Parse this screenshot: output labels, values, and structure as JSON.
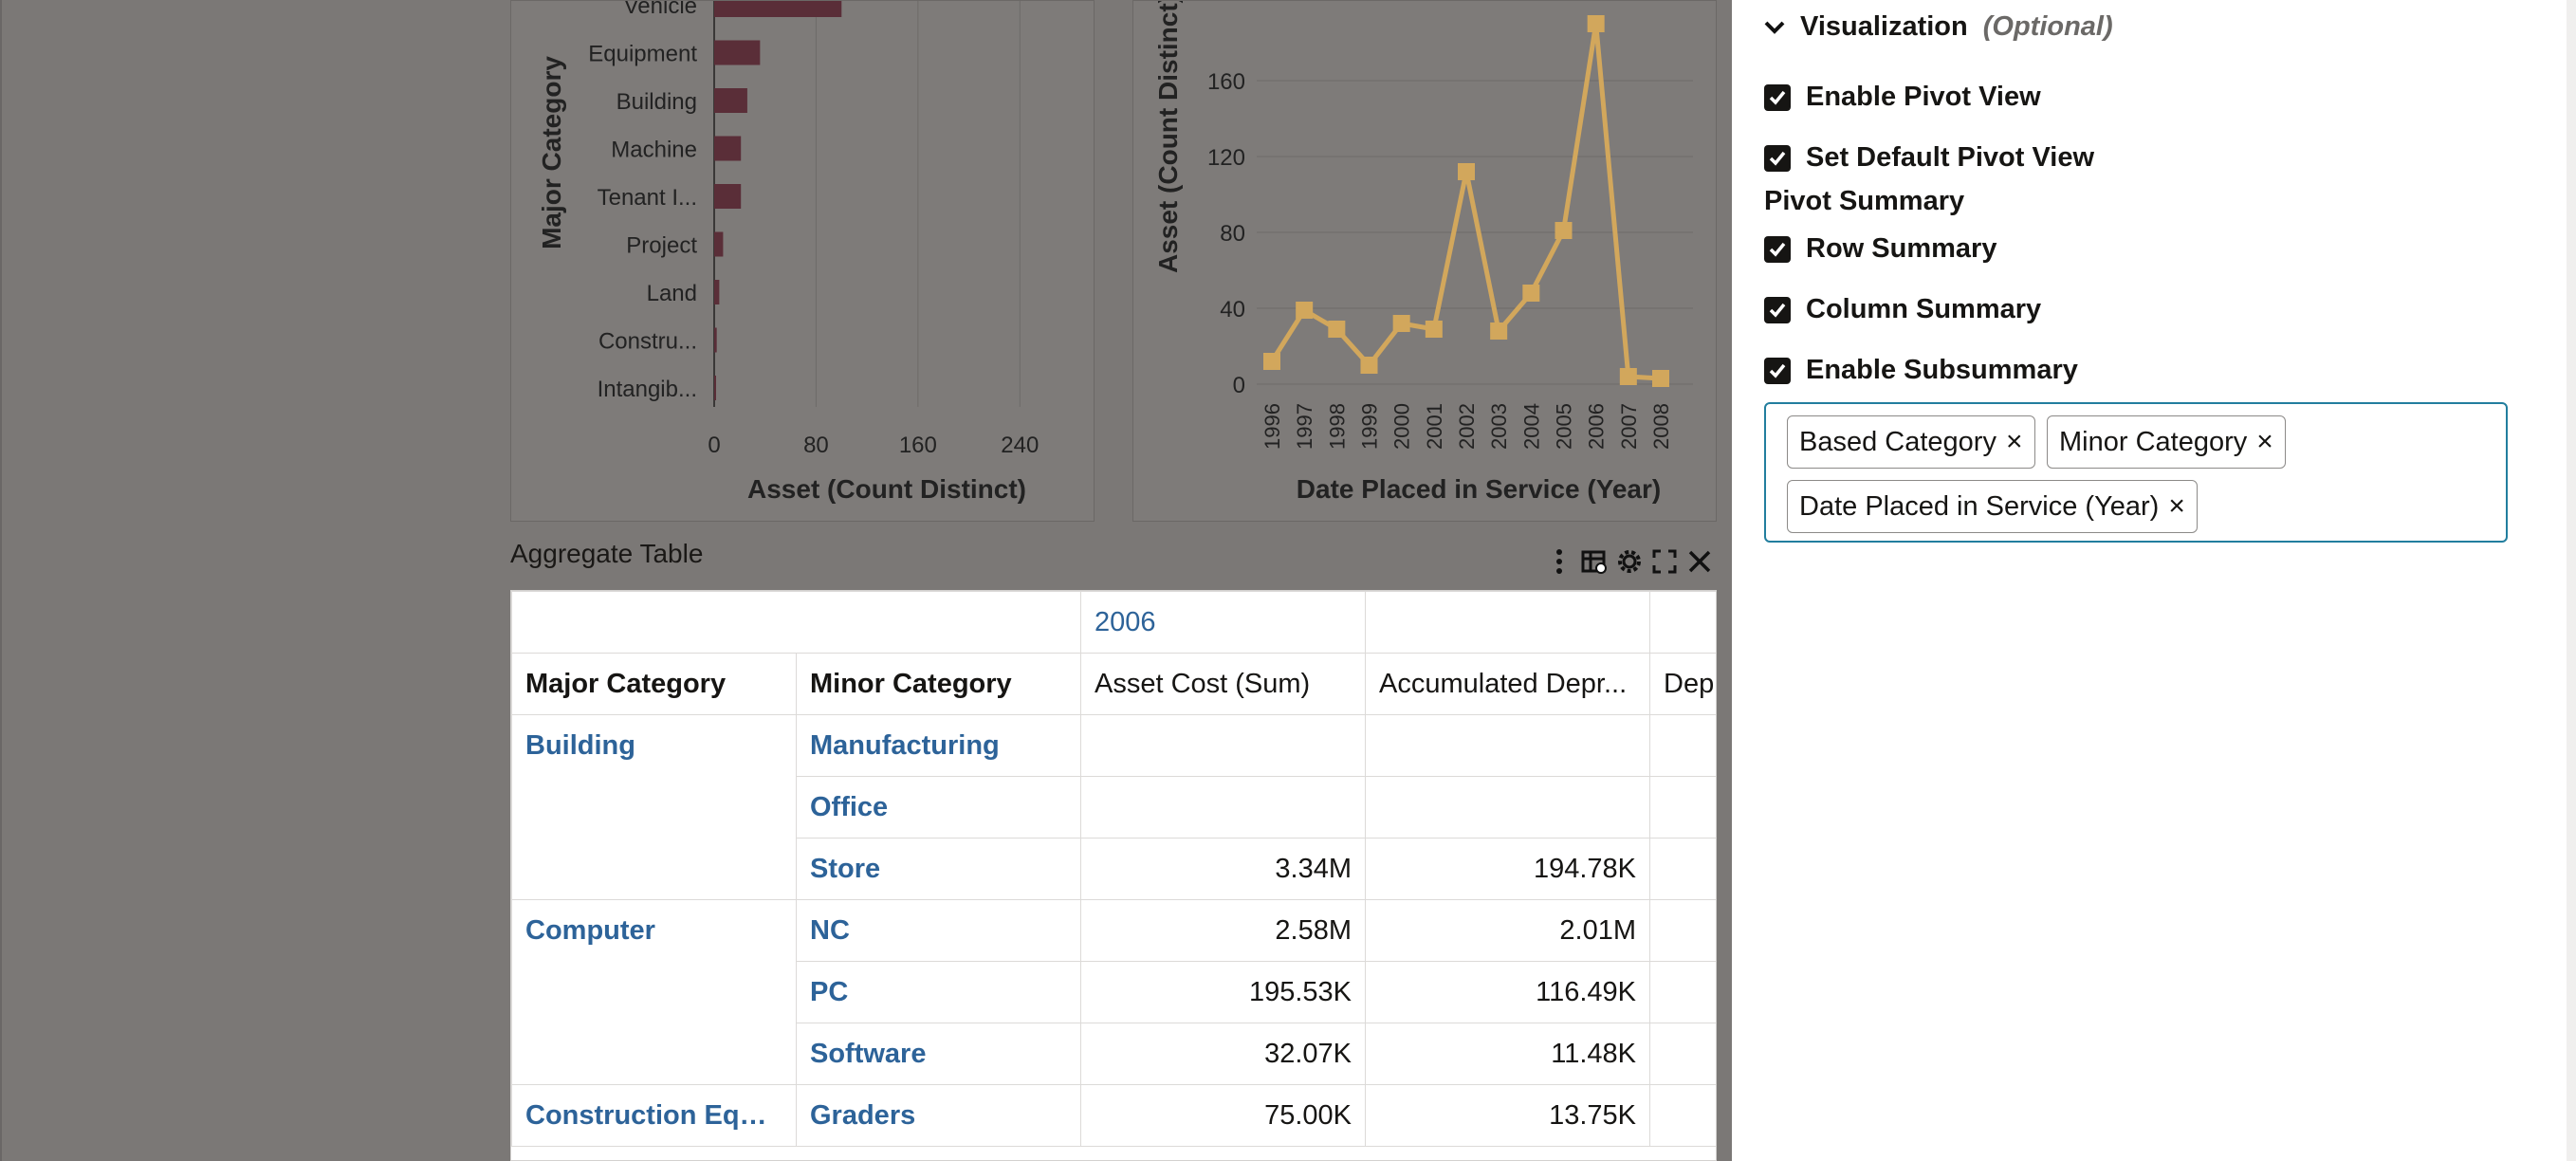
{
  "bar_chart": {
    "chart_data": {
      "type": "bar",
      "orientation": "horizontal",
      "categories": [
        "Vehicle",
        "Equipment",
        "Building",
        "Machine",
        "Tenant I...",
        "Project",
        "Land",
        "Constru...",
        "Intangib..."
      ],
      "values": [
        100,
        36,
        26,
        21,
        21,
        7,
        4,
        2,
        1
      ],
      "xlabel": "Asset (Count Distinct)",
      "ylabel": "Major Category",
      "xticks": [
        "0",
        "80",
        "160",
        "240"
      ],
      "xlim": [
        0,
        280
      ],
      "grid": true
    }
  },
  "line_chart": {
    "chart_data": {
      "type": "line",
      "x": [
        "1996",
        "1997",
        "1998",
        "1999",
        "2000",
        "2001",
        "2002",
        "2003",
        "2004",
        "2005",
        "2006",
        "2007",
        "2008"
      ],
      "values": [
        12,
        39,
        29,
        10,
        32,
        29,
        112,
        28,
        48,
        81,
        190,
        4,
        3
      ],
      "xlabel": "Date Placed in Service (Year)",
      "ylabel": "Asset (Count Distinct)",
      "yticks": [
        "0",
        "40",
        "80",
        "120",
        "160"
      ],
      "ylim": [
        0,
        200
      ],
      "grid": true,
      "color": "#d2a75c"
    }
  },
  "aggregate": {
    "title": "Aggregate Table",
    "year": "2006",
    "headers": {
      "major": "Major Category",
      "minor": "Minor Category",
      "cost": "Asset Cost (Sum)",
      "accum": "Accumulated Depr...",
      "dep": "Dep"
    },
    "rows": [
      {
        "major": "Building",
        "minor": "Manufacturing",
        "cost": "",
        "accum": ""
      },
      {
        "major": "",
        "minor": "Office",
        "cost": "",
        "accum": ""
      },
      {
        "major": "",
        "minor": "Store",
        "cost": "3.34M",
        "accum": "194.78K"
      },
      {
        "major": "Computer",
        "minor": "NC",
        "cost": "2.58M",
        "accum": "2.01M"
      },
      {
        "major": "",
        "minor": "PC",
        "cost": "195.53K",
        "accum": "116.49K"
      },
      {
        "major": "",
        "minor": "Software",
        "cost": "32.07K",
        "accum": "11.48K"
      },
      {
        "major": "Construction Equi...",
        "minor": "Graders",
        "cost": "75.00K",
        "accum": "13.75K"
      }
    ]
  },
  "panel": {
    "visualization_label": "Visualization",
    "optional_label": "(Optional)",
    "enable_pivot": "Enable Pivot View",
    "default_pivot": "Set Default Pivot View",
    "pivot_summary": "Pivot Summary",
    "row_summary": "Row Summary",
    "column_summary": "Column Summary",
    "enable_subsummary": "Enable Subsummary",
    "chips": [
      "Based Category",
      "Minor Category",
      "Date Placed in Service (Year)"
    ],
    "chip_close": "×"
  },
  "colors": {
    "bar": "#5a2e38",
    "line": "#d2a75c",
    "link": "#2d6399",
    "focus": "#227e9e"
  }
}
